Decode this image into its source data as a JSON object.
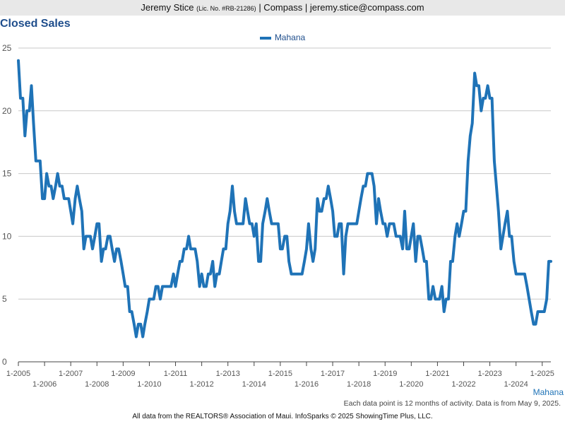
{
  "header": {
    "agent_name": "Jeremy Stice",
    "license": "(Lic. No. #RB-21286)",
    "brokerage": "| Compass |",
    "email": "jeremy.stice@compass.com"
  },
  "footnote": "Each data point is 12 months of activity. Data is from May 9, 2025.",
  "credits": "All data from the REALTORS® Association of Maui. InfoSparks © 2025 ShowingTime Plus, LLC.",
  "colors": {
    "series": "#1f73b7",
    "grid": "#c8c8c8",
    "title": "#1f4e8c"
  },
  "chart_data": {
    "type": "line",
    "title": "Closed Sales",
    "xlabel": "",
    "ylabel": "",
    "ylim": [
      0,
      25
    ],
    "yticks": [
      "0",
      "5",
      "10",
      "15",
      "20",
      "25"
    ],
    "xlim": [
      2005.0,
      2025.33
    ],
    "xticks": [
      {
        "label": "1-2005",
        "pos": 2005,
        "row": 0
      },
      {
        "label": "1-2006",
        "pos": 2006,
        "row": 1
      },
      {
        "label": "1-2007",
        "pos": 2007,
        "row": 0
      },
      {
        "label": "1-2008",
        "pos": 2008,
        "row": 1
      },
      {
        "label": "1-2009",
        "pos": 2009,
        "row": 0
      },
      {
        "label": "1-2010",
        "pos": 2010,
        "row": 1
      },
      {
        "label": "1-2011",
        "pos": 2011,
        "row": 0
      },
      {
        "label": "1-2012",
        "pos": 2012,
        "row": 1
      },
      {
        "label": "1-2013",
        "pos": 2013,
        "row": 0
      },
      {
        "label": "1-2014",
        "pos": 2014,
        "row": 1
      },
      {
        "label": "1-2015",
        "pos": 2015,
        "row": 0
      },
      {
        "label": "1-2016",
        "pos": 2016,
        "row": 1
      },
      {
        "label": "1-2017",
        "pos": 2017,
        "row": 0
      },
      {
        "label": "1-2018",
        "pos": 2018,
        "row": 1
      },
      {
        "label": "1-2019",
        "pos": 2019,
        "row": 0
      },
      {
        "label": "1-2020",
        "pos": 2020,
        "row": 1
      },
      {
        "label": "1-2021",
        "pos": 2021,
        "row": 0
      },
      {
        "label": "1-2022",
        "pos": 2022,
        "row": 1
      },
      {
        "label": "1-2023",
        "pos": 2023,
        "row": 0
      },
      {
        "label": "1-2024",
        "pos": 2024,
        "row": 1
      },
      {
        "label": "1-2025",
        "pos": 2025,
        "row": 0
      }
    ],
    "legend_position": "top-center",
    "grid": true,
    "series": [
      {
        "name": "Mahana",
        "x": [
          2005.0,
          2005.08,
          2005.17,
          2005.25,
          2005.33,
          2005.42,
          2005.5,
          2005.58,
          2005.67,
          2005.75,
          2005.83,
          2005.92,
          2006.0,
          2006.08,
          2006.17,
          2006.25,
          2006.33,
          2006.42,
          2006.5,
          2006.58,
          2006.67,
          2006.75,
          2006.83,
          2006.92,
          2007.0,
          2007.08,
          2007.17,
          2007.25,
          2007.33,
          2007.42,
          2007.5,
          2007.58,
          2007.67,
          2007.75,
          2007.83,
          2007.92,
          2008.0,
          2008.08,
          2008.17,
          2008.25,
          2008.33,
          2008.42,
          2008.5,
          2008.58,
          2008.67,
          2008.75,
          2008.83,
          2008.92,
          2009.0,
          2009.08,
          2009.17,
          2009.25,
          2009.33,
          2009.42,
          2009.5,
          2009.58,
          2009.67,
          2009.75,
          2009.83,
          2009.92,
          2010.0,
          2010.08,
          2010.17,
          2010.25,
          2010.33,
          2010.42,
          2010.5,
          2010.58,
          2010.67,
          2010.75,
          2010.83,
          2010.92,
          2011.0,
          2011.08,
          2011.17,
          2011.25,
          2011.33,
          2011.42,
          2011.5,
          2011.58,
          2011.67,
          2011.75,
          2011.83,
          2011.92,
          2012.0,
          2012.08,
          2012.17,
          2012.25,
          2012.33,
          2012.42,
          2012.5,
          2012.58,
          2012.67,
          2012.75,
          2012.83,
          2012.92,
          2013.0,
          2013.08,
          2013.17,
          2013.25,
          2013.33,
          2013.42,
          2013.5,
          2013.58,
          2013.67,
          2013.75,
          2013.83,
          2013.92,
          2014.0,
          2014.08,
          2014.17,
          2014.25,
          2014.33,
          2014.42,
          2014.5,
          2014.58,
          2014.67,
          2014.75,
          2014.83,
          2014.92,
          2015.0,
          2015.08,
          2015.17,
          2015.25,
          2015.33,
          2015.42,
          2015.5,
          2015.58,
          2015.67,
          2015.75,
          2015.83,
          2015.92,
          2016.0,
          2016.08,
          2016.17,
          2016.25,
          2016.33,
          2016.42,
          2016.5,
          2016.58,
          2016.67,
          2016.75,
          2016.83,
          2016.92,
          2017.0,
          2017.08,
          2017.17,
          2017.25,
          2017.33,
          2017.42,
          2017.5,
          2017.58,
          2017.67,
          2017.75,
          2017.83,
          2017.92,
          2018.0,
          2018.08,
          2018.17,
          2018.25,
          2018.33,
          2018.42,
          2018.5,
          2018.58,
          2018.67,
          2018.75,
          2018.83,
          2018.92,
          2019.0,
          2019.08,
          2019.17,
          2019.25,
          2019.33,
          2019.42,
          2019.5,
          2019.58,
          2019.67,
          2019.75,
          2019.83,
          2019.92,
          2020.0,
          2020.08,
          2020.17,
          2020.25,
          2020.33,
          2020.42,
          2020.5,
          2020.58,
          2020.67,
          2020.75,
          2020.83,
          2020.92,
          2021.0,
          2021.08,
          2021.17,
          2021.25,
          2021.33,
          2021.42,
          2021.5,
          2021.58,
          2021.67,
          2021.75,
          2021.83,
          2021.92,
          2022.0,
          2022.08,
          2022.17,
          2022.25,
          2022.33,
          2022.42,
          2022.5,
          2022.58,
          2022.67,
          2022.75,
          2022.83,
          2022.92,
          2023.0,
          2023.08,
          2023.17,
          2023.25,
          2023.33,
          2023.42,
          2023.5,
          2023.58,
          2023.67,
          2023.75,
          2023.83,
          2023.92,
          2024.0,
          2024.08,
          2024.17,
          2024.25,
          2024.33,
          2024.42,
          2024.5,
          2024.58,
          2024.67,
          2024.75,
          2024.83,
          2024.92,
          2025.0,
          2025.08,
          2025.17,
          2025.25,
          2025.33
        ],
        "values": [
          24,
          21,
          21,
          18,
          20,
          20,
          22,
          19,
          16,
          16,
          16,
          13,
          13,
          15,
          14,
          14,
          13,
          14,
          15,
          14,
          14,
          13,
          13,
          13,
          12,
          11,
          13,
          14,
          13,
          12,
          9,
          10,
          10,
          10,
          9,
          10,
          11,
          11,
          8,
          9,
          9,
          10,
          10,
          9,
          8,
          9,
          9,
          8,
          7,
          6,
          6,
          4,
          4,
          3,
          2,
          3,
          3,
          2,
          3,
          4,
          5,
          5,
          5,
          6,
          6,
          5,
          6,
          6,
          6,
          6,
          6,
          7,
          6,
          7,
          8,
          8,
          9,
          9,
          10,
          9,
          9,
          9,
          8,
          6,
          7,
          6,
          6,
          7,
          7,
          8,
          6,
          7,
          7,
          8,
          9,
          9,
          11,
          12,
          14,
          12,
          11,
          11,
          11,
          11,
          13,
          12,
          11,
          11,
          10,
          11,
          8,
          8,
          11,
          12,
          13,
          12,
          11,
          11,
          11,
          11,
          9,
          9,
          10,
          10,
          8,
          7,
          7,
          7,
          7,
          7,
          7,
          8,
          9,
          11,
          9,
          8,
          9,
          13,
          12,
          12,
          13,
          13,
          14,
          13,
          12,
          10,
          10,
          11,
          11,
          7,
          10,
          11,
          11,
          11,
          11,
          11,
          12,
          13,
          14,
          14,
          15,
          15,
          15,
          14,
          11,
          13,
          12,
          11,
          11,
          10,
          11,
          11,
          11,
          10,
          10,
          10,
          9,
          12,
          9,
          9,
          10,
          11,
          8,
          10,
          10,
          9,
          8,
          8,
          5,
          5,
          6,
          5,
          5,
          5,
          6,
          4,
          5,
          5,
          8,
          8,
          10,
          11,
          10,
          11,
          12,
          12,
          16,
          18,
          19,
          23,
          22,
          22,
          20,
          21,
          21,
          22,
          21,
          21,
          16,
          14,
          12,
          9,
          10,
          11,
          12,
          10,
          10,
          8,
          7,
          7,
          7,
          7,
          7,
          6,
          5,
          4,
          3,
          3,
          4,
          4,
          4,
          4,
          5,
          8,
          8
        ]
      }
    ]
  }
}
